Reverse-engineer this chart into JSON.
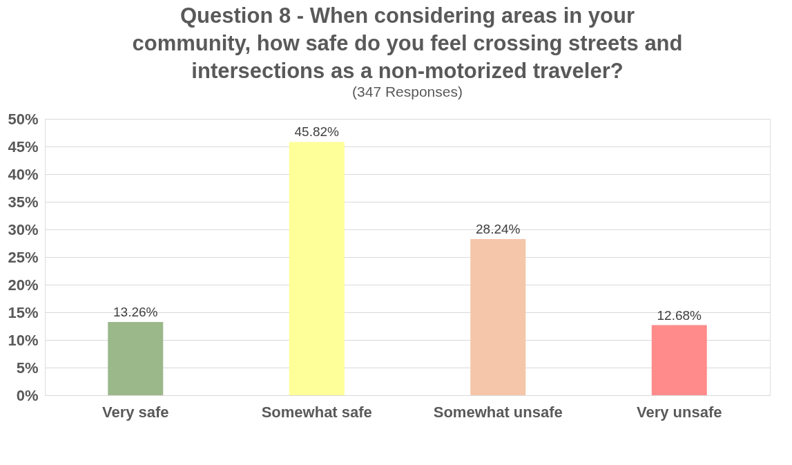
{
  "chart_data": {
    "type": "bar",
    "title": [
      "Question 8 - When considering areas in your",
      "community, how safe do you feel crossing streets and",
      "intersections as a non-motorized traveler?"
    ],
    "subtitle": "(347 Responses)",
    "categories": [
      "Very safe",
      "Somewhat safe",
      "Somewhat unsafe",
      "Very unsafe"
    ],
    "values": [
      13.26,
      45.82,
      28.24,
      12.68
    ],
    "colors": [
      "#9bb88b",
      "#ffff99",
      "#f5c6aa",
      "#ff8b8b"
    ],
    "value_labels": [
      "13.26%",
      "45.82%",
      "28.24%",
      "12.68%"
    ],
    "ylim": [
      0,
      50
    ],
    "yticks": [
      {
        "value": 0,
        "label": "0%"
      },
      {
        "value": 5,
        "label": "5%"
      },
      {
        "value": 10,
        "label": "10%"
      },
      {
        "value": 15,
        "label": "15%"
      },
      {
        "value": 20,
        "label": "20%"
      },
      {
        "value": 25,
        "label": "25%"
      },
      {
        "value": 30,
        "label": "30%"
      },
      {
        "value": 35,
        "label": "35%"
      },
      {
        "value": 40,
        "label": "40%"
      },
      {
        "value": 45,
        "label": "45%"
      },
      {
        "value": 50,
        "label": "50%"
      }
    ],
    "grid": "y"
  }
}
